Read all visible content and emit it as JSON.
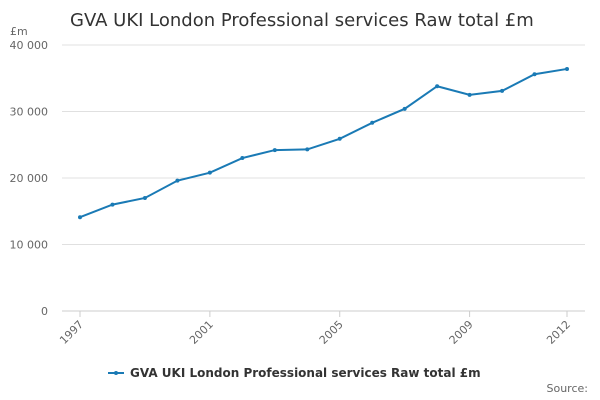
{
  "chart_data": {
    "type": "line",
    "title": "GVA UKI London Professional services Raw total £m",
    "y_label": "£m",
    "source": "Source:",
    "x": [
      1997,
      1998,
      1999,
      2000,
      2001,
      2002,
      2003,
      2004,
      2005,
      2006,
      2007,
      2008,
      2009,
      2010,
      2011,
      2012
    ],
    "xlim": [
      1997,
      2012
    ],
    "xticks": [
      1997,
      2001,
      2005,
      2009,
      2012
    ],
    "ylim": [
      0,
      40000
    ],
    "yticks": [
      0,
      {
        "value": 10000,
        "label": "10 000"
      },
      {
        "value": 20000,
        "label": "20 000"
      },
      {
        "value": 30000,
        "label": "30 000"
      },
      {
        "value": 40000,
        "label": "40 000"
      }
    ],
    "grid": true,
    "series": [
      {
        "name": "GVA UKI London Professional services Raw total £m",
        "color": "#1a7ab5",
        "values": [
          14100,
          16000,
          17000,
          19600,
          20800,
          23000,
          24200,
          24300,
          25900,
          28300,
          30400,
          33800,
          32500,
          33100,
          35600,
          36400
        ]
      }
    ]
  }
}
